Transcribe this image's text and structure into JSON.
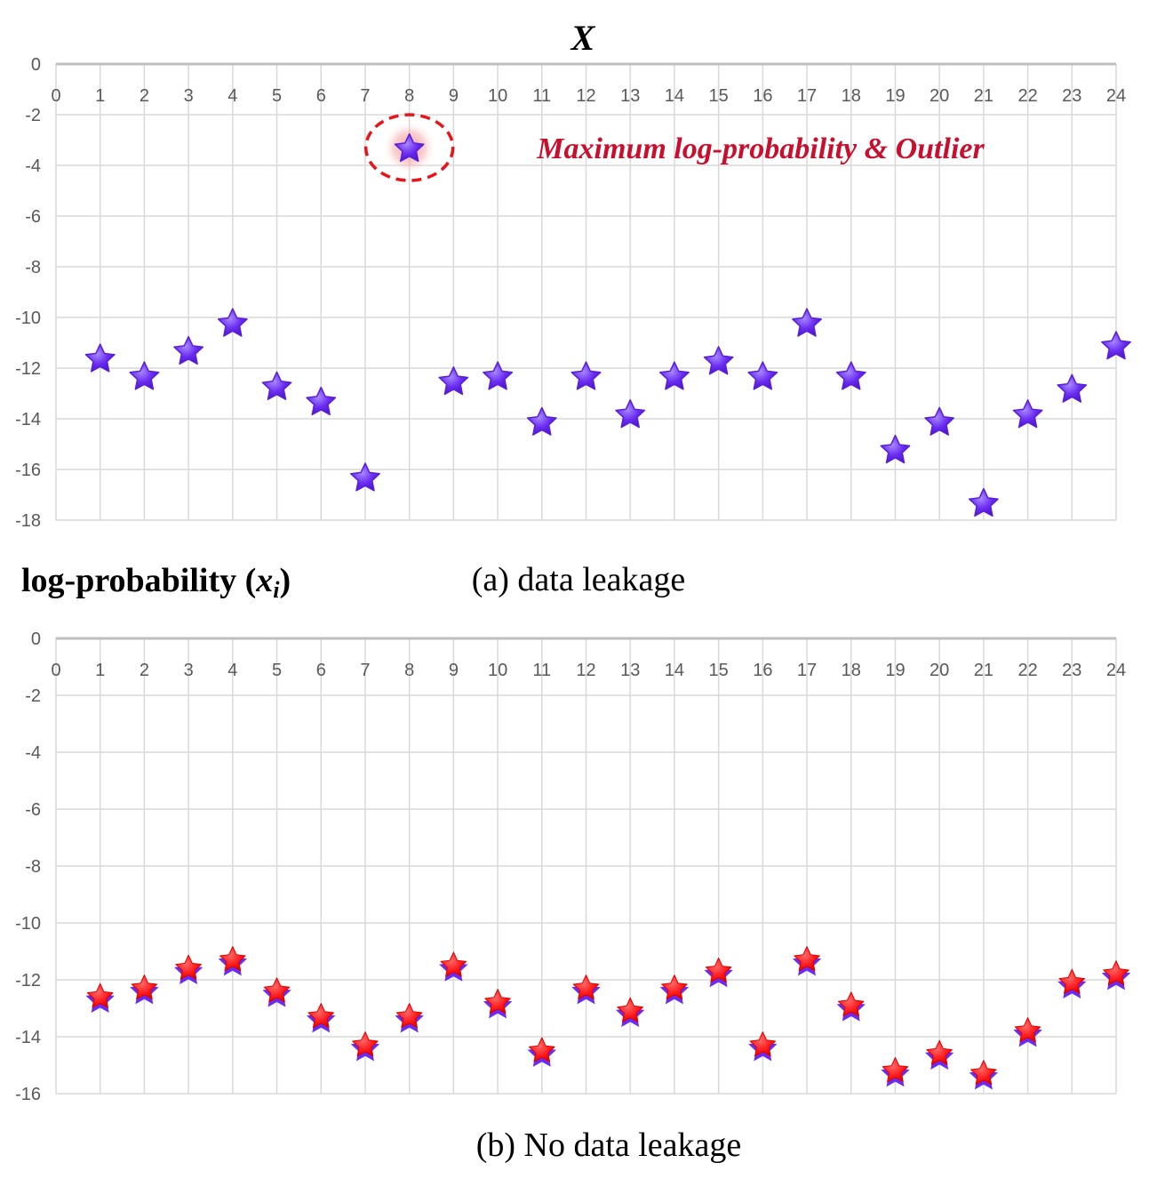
{
  "figure": {
    "x_axis_symbol": "X",
    "shared_ylabel": "log-probability",
    "shared_ylabel_var": "x",
    "shared_ylabel_sub": "i",
    "colors": {
      "grid": "#d9d9d9",
      "axis_line": "#bfbfbf",
      "tick_text": "#595959",
      "star_purple": "#6a2cf0",
      "star_red": "#ff1a1a",
      "annotation": "#c8102e"
    }
  },
  "chart_data": [
    {
      "type": "scatter",
      "caption": "(a) data leakage",
      "marker": "purple-star",
      "x": [
        1,
        2,
        3,
        4,
        5,
        6,
        7,
        8,
        9,
        10,
        11,
        12,
        13,
        14,
        15,
        16,
        17,
        18,
        19,
        20,
        21,
        22,
        23,
        24
      ],
      "y": [
        -11.6,
        -12.3,
        -11.3,
        -10.2,
        -12.7,
        -13.3,
        -16.3,
        -3.3,
        -12.5,
        -12.3,
        -14.1,
        -12.3,
        -13.8,
        -12.3,
        -11.7,
        -12.3,
        -10.2,
        -12.3,
        -15.2,
        -14.1,
        -17.3,
        -13.8,
        -12.8,
        -11.1
      ],
      "x_ticks": [
        0,
        1,
        2,
        3,
        4,
        5,
        6,
        7,
        8,
        9,
        10,
        11,
        12,
        13,
        14,
        15,
        16,
        17,
        18,
        19,
        20,
        21,
        22,
        23,
        24
      ],
      "y_ticks": [
        0,
        -2,
        -4,
        -6,
        -8,
        -10,
        -12,
        -14,
        -16,
        -18
      ],
      "xlim": [
        0,
        24
      ],
      "ylim": [
        -18,
        0
      ],
      "grid": true,
      "annotation": {
        "text": "Maximum log-probability & Outlier",
        "x": 8,
        "y": -3.3
      }
    },
    {
      "type": "scatter",
      "caption": "(b) No data leakage",
      "marker": "red-star-on-purple",
      "x": [
        1,
        2,
        3,
        4,
        5,
        6,
        7,
        8,
        9,
        10,
        11,
        12,
        13,
        14,
        15,
        16,
        17,
        18,
        19,
        20,
        21,
        22,
        23,
        24
      ],
      "y": [
        -12.6,
        -12.3,
        -11.6,
        -11.3,
        -12.4,
        -13.3,
        -14.3,
        -13.3,
        -11.5,
        -12.8,
        -14.5,
        -12.3,
        -13.1,
        -12.3,
        -11.7,
        -14.3,
        -11.3,
        -12.9,
        -15.2,
        -14.6,
        -15.3,
        -13.8,
        -12.1,
        -11.8
      ],
      "x_ticks": [
        0,
        1,
        2,
        3,
        4,
        5,
        6,
        7,
        8,
        9,
        10,
        11,
        12,
        13,
        14,
        15,
        16,
        17,
        18,
        19,
        20,
        21,
        22,
        23,
        24
      ],
      "y_ticks": [
        0,
        -2,
        -4,
        -6,
        -8,
        -10,
        -12,
        -14,
        -16
      ],
      "xlim": [
        0,
        24
      ],
      "ylim": [
        -16,
        0
      ],
      "grid": true
    }
  ]
}
